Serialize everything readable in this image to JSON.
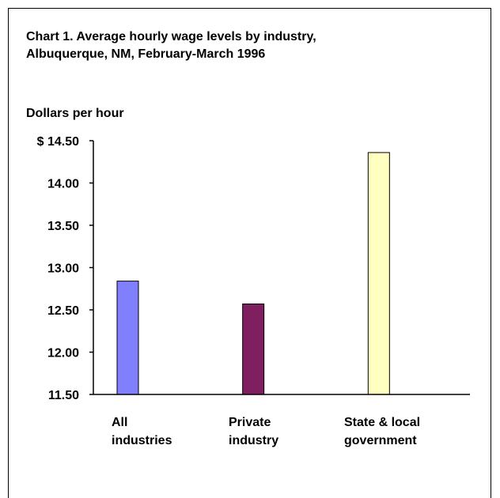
{
  "chart_data": {
    "type": "bar",
    "title_lines": [
      "Chart 1. Average hourly wage levels by industry,",
      "Albuquerque, NM, February-March 1996"
    ],
    "ylabel": "Dollars per hour",
    "xlabel": "",
    "categories": [
      [
        "All",
        "industries"
      ],
      [
        "Private",
        "industry"
      ],
      [
        "State & local",
        "government"
      ]
    ],
    "values": [
      12.84,
      12.57,
      14.36
    ],
    "colors": [
      "#8080ff",
      "#7f1f5f",
      "#ffffc0"
    ],
    "ylim": [
      11.5,
      14.5
    ],
    "yticks": [
      11.5,
      12.0,
      12.5,
      13.0,
      13.5,
      14.0,
      14.5
    ],
    "ytick_labels": [
      "11.50",
      "12.00",
      "12.50",
      "13.00",
      "13.50",
      "14.00",
      "$ 14.50"
    ],
    "grid": false,
    "legend": "none"
  }
}
